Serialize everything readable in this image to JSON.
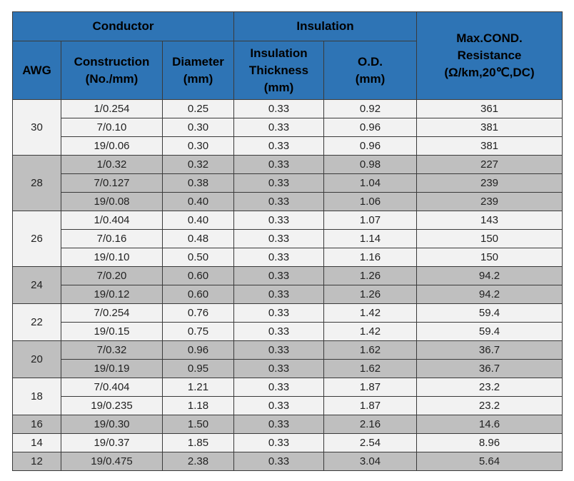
{
  "headers": {
    "conductor": "Conductor",
    "insulation": "Insulation",
    "resistance": [
      "Max.COND.",
      "Resistance",
      "(Ω/km,20℃,DC)"
    ],
    "awg": "AWG",
    "construction": [
      "Construction",
      "(No./mm)"
    ],
    "diameter": [
      "Diameter",
      "(mm)"
    ],
    "thickness": [
      "Insulation",
      "Thickness",
      "(mm)"
    ],
    "od": [
      "O.D.",
      "(mm)"
    ]
  },
  "colors": {
    "header_bg": "#2e74b5",
    "row_light": "#f2f2f2",
    "row_dark": "#bfbfbf",
    "border": "#3a3a3a"
  },
  "groups": [
    {
      "awg": "30",
      "shade": "light",
      "rows": [
        {
          "construction": "1/0.254",
          "diameter": "0.25",
          "thickness": "0.33",
          "od": "0.92",
          "resistance": "361"
        },
        {
          "construction": "7/0.10",
          "diameter": "0.30",
          "thickness": "0.33",
          "od": "0.96",
          "resistance": "381"
        },
        {
          "construction": "19/0.06",
          "diameter": "0.30",
          "thickness": "0.33",
          "od": "0.96",
          "resistance": "381"
        }
      ]
    },
    {
      "awg": "28",
      "shade": "dark",
      "rows": [
        {
          "construction": "1/0.32",
          "diameter": "0.32",
          "thickness": "0.33",
          "od": "0.98",
          "resistance": "227"
        },
        {
          "construction": "7/0.127",
          "diameter": "0.38",
          "thickness": "0.33",
          "od": "1.04",
          "resistance": "239"
        },
        {
          "construction": "19/0.08",
          "diameter": "0.40",
          "thickness": "0.33",
          "od": "1.06",
          "resistance": "239"
        }
      ]
    },
    {
      "awg": "26",
      "shade": "light",
      "rows": [
        {
          "construction": "1/0.404",
          "diameter": "0.40",
          "thickness": "0.33",
          "od": "1.07",
          "resistance": "143"
        },
        {
          "construction": "7/0.16",
          "diameter": "0.48",
          "thickness": "0.33",
          "od": "1.14",
          "resistance": "150"
        },
        {
          "construction": "19/0.10",
          "diameter": "0.50",
          "thickness": "0.33",
          "od": "1.16",
          "resistance": "150"
        }
      ]
    },
    {
      "awg": "24",
      "shade": "dark",
      "rows": [
        {
          "construction": "7/0.20",
          "diameter": "0.60",
          "thickness": "0.33",
          "od": "1.26",
          "resistance": "94.2"
        },
        {
          "construction": "19/0.12",
          "diameter": "0.60",
          "thickness": "0.33",
          "od": "1.26",
          "resistance": "94.2"
        }
      ]
    },
    {
      "awg": "22",
      "shade": "light",
      "rows": [
        {
          "construction": "7/0.254",
          "diameter": "0.76",
          "thickness": "0.33",
          "od": "1.42",
          "resistance": "59.4"
        },
        {
          "construction": "19/0.15",
          "diameter": "0.75",
          "thickness": "0.33",
          "od": "1.42",
          "resistance": "59.4"
        }
      ]
    },
    {
      "awg": "20",
      "shade": "dark",
      "rows": [
        {
          "construction": "7/0.32",
          "diameter": "0.96",
          "thickness": "0.33",
          "od": "1.62",
          "resistance": "36.7"
        },
        {
          "construction": "19/0.19",
          "diameter": "0.95",
          "thickness": "0.33",
          "od": "1.62",
          "resistance": "36.7"
        }
      ]
    },
    {
      "awg": "18",
      "shade": "light",
      "rows": [
        {
          "construction": "7/0.404",
          "diameter": "1.21",
          "thickness": "0.33",
          "od": "1.87",
          "resistance": "23.2"
        },
        {
          "construction": "19/0.235",
          "diameter": "1.18",
          "thickness": "0.33",
          "od": "1.87",
          "resistance": "23.2"
        }
      ]
    },
    {
      "awg": "16",
      "shade": "dark",
      "rows": [
        {
          "construction": "19/0.30",
          "diameter": "1.50",
          "thickness": "0.33",
          "od": "2.16",
          "resistance": "14.6"
        }
      ]
    },
    {
      "awg": "14",
      "shade": "light",
      "rows": [
        {
          "construction": "19/0.37",
          "diameter": "1.85",
          "thickness": "0.33",
          "od": "2.54",
          "resistance": "8.96"
        }
      ]
    },
    {
      "awg": "12",
      "shade": "dark",
      "rows": [
        {
          "construction": "19/0.475",
          "diameter": "2.38",
          "thickness": "0.33",
          "od": "3.04",
          "resistance": "5.64"
        }
      ]
    }
  ]
}
